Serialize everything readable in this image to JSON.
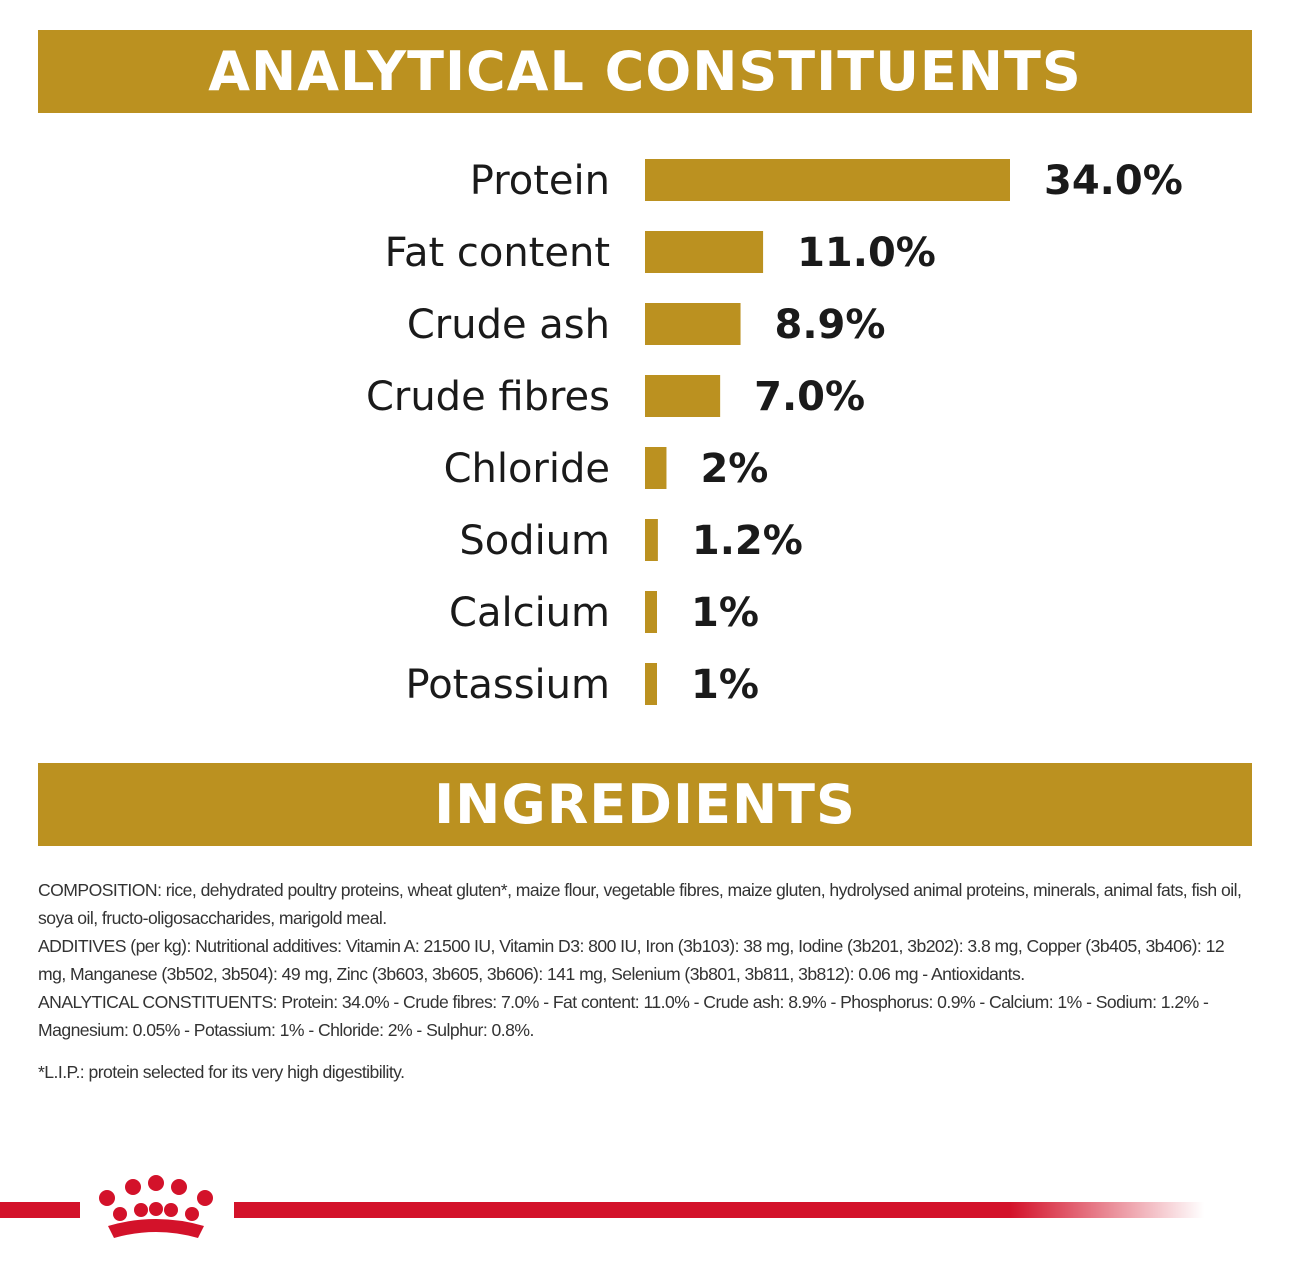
{
  "colors": {
    "gold": "#bb9120",
    "brand_red": "#d3122a",
    "text": "#1a1a1a"
  },
  "headers": {
    "analytical": "ANALYTICAL CONSTITUENTS",
    "ingredients": "INGREDIENTS"
  },
  "chart_data": {
    "type": "bar",
    "orientation": "horizontal",
    "categories": [
      "Protein",
      "Fat content",
      "Crude ash",
      "Crude fibres",
      "Chloride",
      "Sodium",
      "Calcium",
      "Potassium"
    ],
    "values": [
      34.0,
      11.0,
      8.9,
      7.0,
      2,
      1.2,
      1,
      1
    ],
    "value_labels": [
      "34.0%",
      "11.0%",
      "8.9%",
      "7.0%",
      "2%",
      "1.2%",
      "1%",
      "1%"
    ],
    "unit": "%",
    "title": "ANALYTICAL CONSTITUENTS",
    "grid": false,
    "legend": "none"
  },
  "ingredients": {
    "composition": "COMPOSITION: rice, dehydrated poultry proteins, wheat gluten*, maize flour, vegetable fibres, maize gluten, hydrolysed animal proteins, minerals, animal fats, fish oil, soya oil, fructo-oligosaccharides, marigold meal.",
    "additives": "ADDITIVES (per kg): Nutritional additives: Vitamin A: 21500 IU, Vitamin D3: 800 IU, Iron (3b103): 38 mg, Iodine (3b201, 3b202): 3.8 mg, Copper (3b405, 3b406): 12 mg, Manganese (3b502, 3b504): 49 mg, Zinc (3b603, 3b605, 3b606): 141 mg, Selenium (3b801, 3b811, 3b812): 0.06 mg - Antioxidants.",
    "analytical": "ANALYTICAL CONSTITUENTS: Protein: 34.0% - Crude fibres: 7.0% - Fat content: 11.0% - Crude ash: 8.9% - Phosphorus: 0.9% - Calcium: 1% - Sodium: 1.2% - Magnesium: 0.05% - Potassium: 1% - Chloride: 2% - Sulphur: 0.8%.",
    "footnote": "*L.I.P.: protein selected for its very high digestibility."
  }
}
